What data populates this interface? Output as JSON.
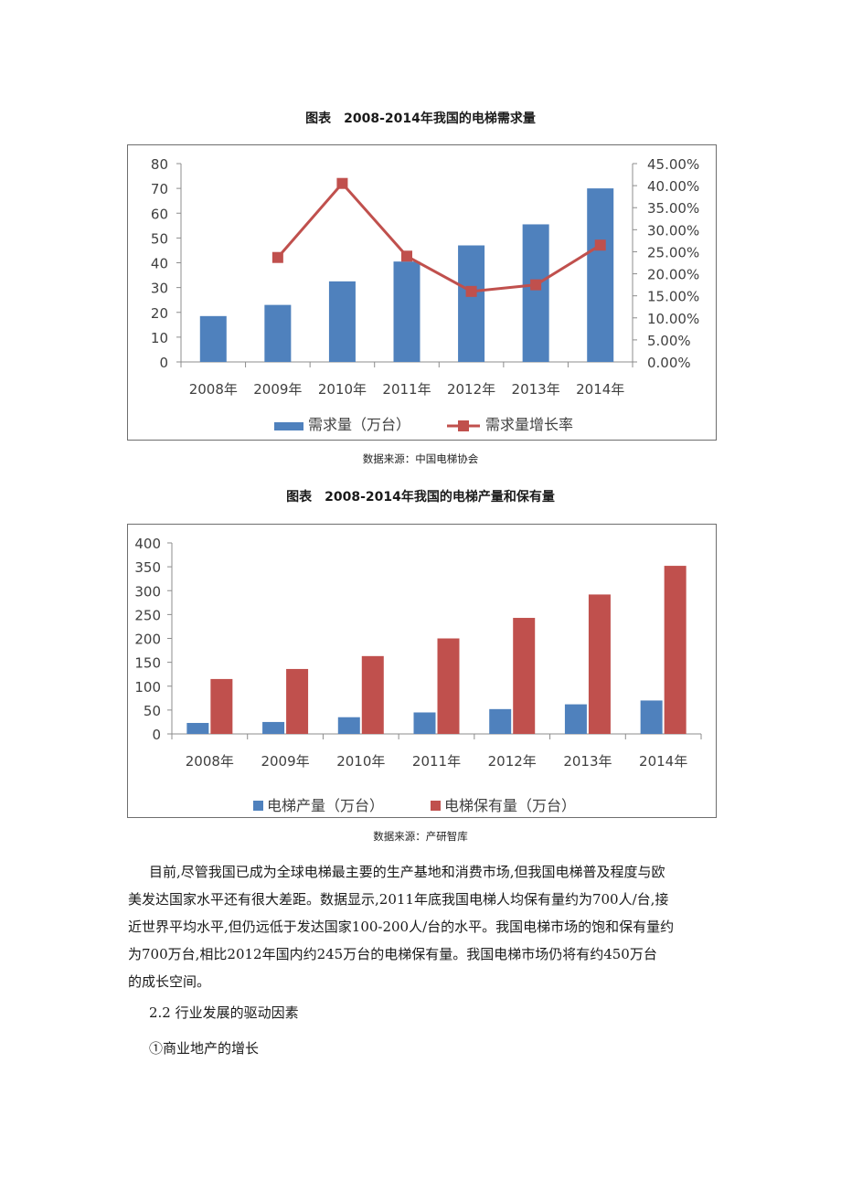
{
  "chart_data": [
    {
      "type": "bar",
      "title": "图表　2008-2014年我国的电梯需求量",
      "categories": [
        "2008年",
        "2009年",
        "2010年",
        "2011年",
        "2012年",
        "2013年",
        "2014年"
      ],
      "series": [
        {
          "name": "需求量（万台）",
          "type": "bar",
          "axis": "left",
          "values": [
            18.5,
            23,
            32.5,
            40.5,
            47,
            55.5,
            70
          ]
        },
        {
          "name": "需求量增长率",
          "type": "line",
          "axis": "right",
          "values": [
            null,
            0.237,
            0.405,
            0.24,
            0.16,
            0.175,
            0.265
          ]
        }
      ],
      "y_left": {
        "min": 0,
        "max": 80,
        "ticks": [
          "0",
          "10",
          "20",
          "30",
          "40",
          "50",
          "60",
          "70",
          "80"
        ]
      },
      "y_right": {
        "min": 0,
        "max": 0.45,
        "ticks": [
          "0.00%",
          "5.00%",
          "10.00%",
          "15.00%",
          "20.00%",
          "25.00%",
          "30.00%",
          "35.00%",
          "40.00%",
          "45.00%"
        ]
      },
      "grid": false,
      "legend": "bottom",
      "colors": {
        "bar": "#4f81bd",
        "line": "#c0504d"
      }
    },
    {
      "type": "bar",
      "title": "图表　2008-2014年我国的电梯产量和保有量",
      "categories": [
        "2008年",
        "2009年",
        "2010年",
        "2011年",
        "2012年",
        "2013年",
        "2014年"
      ],
      "series": [
        {
          "name": "电梯产量（万台）",
          "values": [
            23,
            25,
            35,
            45,
            52,
            62,
            70
          ]
        },
        {
          "name": "电梯保有量（万台）",
          "values": [
            115,
            136,
            163,
            200,
            243,
            292,
            352
          ]
        }
      ],
      "y": {
        "min": 0,
        "max": 400,
        "ticks": [
          "0",
          "50",
          "100",
          "150",
          "200",
          "250",
          "300",
          "350",
          "400"
        ]
      },
      "grid": false,
      "legend": "bottom",
      "colors": {
        "production": "#4f81bd",
        "stock": "#c0504d"
      }
    }
  ],
  "sources": {
    "chart1": "数据来源：中国电梯协会",
    "chart2": "数据来源：产研智库"
  },
  "paragraph": [
    "目前,尽管我国已成为全球电梯最主要的生产基地和消费市场,但我国电梯普及程度与欧",
    "美发达国家水平还有很大差距。数据显示,2011年底我国电梯人均保有量约为700人/台,接",
    "近世界平均水平,但仍远低于发达国家100-200人/台的水平。我国电梯市场的饱和保有量约",
    "为700万台,相比2012年国内约245万台的电梯保有量。我国电梯市场仍将有约450万台",
    "的成长空间。"
  ],
  "section_heading": "2.2 行业发展的驱动因素",
  "subheading": "①商业地产的增长"
}
